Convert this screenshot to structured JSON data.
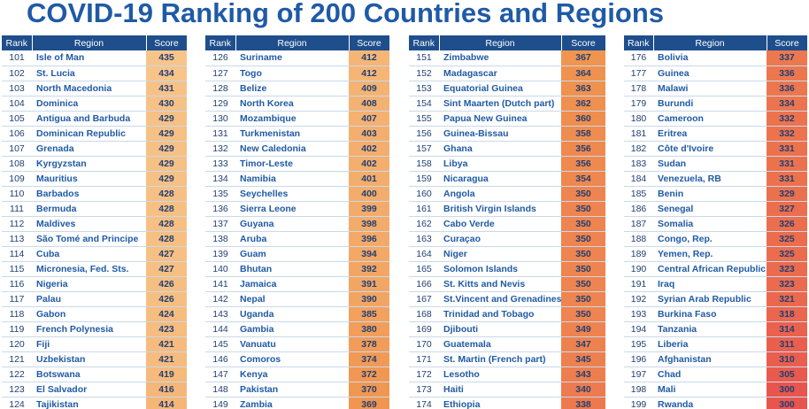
{
  "title": "COVID-19 Ranking of 200 Countries and Regions",
  "colors": {
    "title": "#1f5aa6",
    "header_bg": "#1f4e8c",
    "score_low": "#e8554e",
    "score_mid": "#f0954f",
    "score_high": "#f7c58a"
  },
  "chart_data": {
    "type": "table",
    "title": "COVID-19 Ranking of 200 Countries and Regions",
    "columns": [
      "Rank",
      "Region",
      "Score"
    ],
    "score_color_scale": {
      "min": 300,
      "max": 435
    },
    "tables": [
      {
        "headers": {
          "rank": "Rank",
          "region": "Region",
          "score": "Score"
        },
        "rows": [
          {
            "rank": "101",
            "region": "Isle of Man",
            "score": "435"
          },
          {
            "rank": "102",
            "region": "St. Lucia",
            "score": "434"
          },
          {
            "rank": "103",
            "region": "North Macedonia",
            "score": "431"
          },
          {
            "rank": "104",
            "region": "Dominica",
            "score": "430"
          },
          {
            "rank": "105",
            "region": "Antigua and Barbuda",
            "score": "429"
          },
          {
            "rank": "106",
            "region": "Dominican Republic",
            "score": "429"
          },
          {
            "rank": "107",
            "region": "Grenada",
            "score": "429"
          },
          {
            "rank": "108",
            "region": "Kyrgyzstan",
            "score": "429"
          },
          {
            "rank": "109",
            "region": "Mauritius",
            "score": "429"
          },
          {
            "rank": "110",
            "region": "Barbados",
            "score": "428"
          },
          {
            "rank": "111",
            "region": "Bermuda",
            "score": "428"
          },
          {
            "rank": "112",
            "region": "Maldives",
            "score": "428"
          },
          {
            "rank": "113",
            "region": "São Tomé and Principe",
            "score": "428"
          },
          {
            "rank": "114",
            "region": "Cuba",
            "score": "427"
          },
          {
            "rank": "115",
            "region": "Micronesia, Fed. Sts.",
            "score": "427"
          },
          {
            "rank": "116",
            "region": "Nigeria",
            "score": "426"
          },
          {
            "rank": "117",
            "region": "Palau",
            "score": "426"
          },
          {
            "rank": "118",
            "region": "Gabon",
            "score": "424"
          },
          {
            "rank": "119",
            "region": "French Polynesia",
            "score": "423"
          },
          {
            "rank": "120",
            "region": "Fiji",
            "score": "421"
          },
          {
            "rank": "121",
            "region": "Uzbekistan",
            "score": "421"
          },
          {
            "rank": "122",
            "region": "Botswana",
            "score": "419"
          },
          {
            "rank": "123",
            "region": "El Salvador",
            "score": "416"
          },
          {
            "rank": "124",
            "region": "Tajikistan",
            "score": "414"
          }
        ]
      },
      {
        "headers": {
          "rank": "Rank",
          "region": "Region",
          "score": "Score"
        },
        "rows": [
          {
            "rank": "126",
            "region": "Suriname",
            "score": "412"
          },
          {
            "rank": "127",
            "region": "Togo",
            "score": "412"
          },
          {
            "rank": "128",
            "region": "Belize",
            "score": "409"
          },
          {
            "rank": "129",
            "region": "North Korea",
            "score": "408"
          },
          {
            "rank": "130",
            "region": "Mozambique",
            "score": "407"
          },
          {
            "rank": "131",
            "region": "Turkmenistan",
            "score": "403"
          },
          {
            "rank": "132",
            "region": "New Caledonia",
            "score": "402"
          },
          {
            "rank": "133",
            "region": "Timor-Leste",
            "score": "402"
          },
          {
            "rank": "134",
            "region": "Namibia",
            "score": "401"
          },
          {
            "rank": "135",
            "region": "Seychelles",
            "score": "400"
          },
          {
            "rank": "136",
            "region": "Sierra Leone",
            "score": "399"
          },
          {
            "rank": "137",
            "region": "Guyana",
            "score": "398"
          },
          {
            "rank": "138",
            "region": "Aruba",
            "score": "396"
          },
          {
            "rank": "139",
            "region": "Guam",
            "score": "394"
          },
          {
            "rank": "140",
            "region": "Bhutan",
            "score": "392"
          },
          {
            "rank": "141",
            "region": "Jamaica",
            "score": "391"
          },
          {
            "rank": "142",
            "region": "Nepal",
            "score": "390"
          },
          {
            "rank": "143",
            "region": "Uganda",
            "score": "385"
          },
          {
            "rank": "144",
            "region": "Gambia",
            "score": "380"
          },
          {
            "rank": "145",
            "region": "Vanuatu",
            "score": "378"
          },
          {
            "rank": "146",
            "region": "Comoros",
            "score": "374"
          },
          {
            "rank": "147",
            "region": "Kenya",
            "score": "372"
          },
          {
            "rank": "148",
            "region": "Pakistan",
            "score": "370"
          },
          {
            "rank": "149",
            "region": "Zambia",
            "score": "369"
          }
        ]
      },
      {
        "headers": {
          "rank": "Rank",
          "region": "Region",
          "score": "Score"
        },
        "rows": [
          {
            "rank": "151",
            "region": "Zimbabwe",
            "score": "367"
          },
          {
            "rank": "152",
            "region": "Madagascar",
            "score": "364"
          },
          {
            "rank": "153",
            "region": "Equatorial Guinea",
            "score": "363"
          },
          {
            "rank": "154",
            "region": "Sint Maarten (Dutch part)",
            "score": "362"
          },
          {
            "rank": "155",
            "region": "Papua New Guinea",
            "score": "360"
          },
          {
            "rank": "156",
            "region": "Guinea-Bissau",
            "score": "358"
          },
          {
            "rank": "157",
            "region": "Ghana",
            "score": "356"
          },
          {
            "rank": "158",
            "region": "Libya",
            "score": "356"
          },
          {
            "rank": "159",
            "region": "Nicaragua",
            "score": "354"
          },
          {
            "rank": "160",
            "region": "Angola",
            "score": "350"
          },
          {
            "rank": "161",
            "region": "British Virgin Islands",
            "score": "350"
          },
          {
            "rank": "162",
            "region": "Cabo Verde",
            "score": "350"
          },
          {
            "rank": "163",
            "region": "Curaçao",
            "score": "350"
          },
          {
            "rank": "164",
            "region": "Niger",
            "score": "350"
          },
          {
            "rank": "165",
            "region": "Solomon Islands",
            "score": "350"
          },
          {
            "rank": "166",
            "region": "St. Kitts and Nevis",
            "score": "350"
          },
          {
            "rank": "167",
            "region": "St.Vincent and Grenadines",
            "score": "350"
          },
          {
            "rank": "168",
            "region": "Trinidad and Tobago",
            "score": "350"
          },
          {
            "rank": "169",
            "region": "Djibouti",
            "score": "349"
          },
          {
            "rank": "170",
            "region": "Guatemala",
            "score": "347"
          },
          {
            "rank": "171",
            "region": "St. Martin (French part)",
            "score": "345"
          },
          {
            "rank": "172",
            "region": "Lesotho",
            "score": "343"
          },
          {
            "rank": "173",
            "region": "Haiti",
            "score": "340"
          },
          {
            "rank": "174",
            "region": "Ethiopia",
            "score": "338"
          }
        ]
      },
      {
        "headers": {
          "rank": "Rank",
          "region": "Region",
          "score": "Score"
        },
        "rows": [
          {
            "rank": "176",
            "region": "Bolivia",
            "score": "337"
          },
          {
            "rank": "177",
            "region": "Guinea",
            "score": "336"
          },
          {
            "rank": "178",
            "region": "Malawi",
            "score": "336"
          },
          {
            "rank": "179",
            "region": "Burundi",
            "score": "334"
          },
          {
            "rank": "180",
            "region": "Cameroon",
            "score": "332"
          },
          {
            "rank": "181",
            "region": "Eritrea",
            "score": "332"
          },
          {
            "rank": "182",
            "region": "Côte d'Ivoire",
            "score": "331"
          },
          {
            "rank": "183",
            "region": "Sudan",
            "score": "331"
          },
          {
            "rank": "184",
            "region": "Venezuela, RB",
            "score": "331"
          },
          {
            "rank": "185",
            "region": "Benin",
            "score": "329"
          },
          {
            "rank": "186",
            "region": "Senegal",
            "score": "327"
          },
          {
            "rank": "187",
            "region": "Somalia",
            "score": "326"
          },
          {
            "rank": "188",
            "region": "Congo, Rep.",
            "score": "325"
          },
          {
            "rank": "189",
            "region": "Yemen, Rep.",
            "score": "325"
          },
          {
            "rank": "190",
            "region": "Central African Republic",
            "score": "323"
          },
          {
            "rank": "191",
            "region": "Iraq",
            "score": "323"
          },
          {
            "rank": "192",
            "region": "Syrian Arab Republic",
            "score": "321"
          },
          {
            "rank": "193",
            "region": "Burkina Faso",
            "score": "318"
          },
          {
            "rank": "194",
            "region": "Tanzania",
            "score": "314"
          },
          {
            "rank": "195",
            "region": "Liberia",
            "score": "311"
          },
          {
            "rank": "196",
            "region": "Afghanistan",
            "score": "310"
          },
          {
            "rank": "197",
            "region": "Chad",
            "score": "305"
          },
          {
            "rank": "198",
            "region": "Mali",
            "score": "300"
          },
          {
            "rank": "199",
            "region": "Rwanda",
            "score": "300"
          }
        ]
      }
    ]
  }
}
